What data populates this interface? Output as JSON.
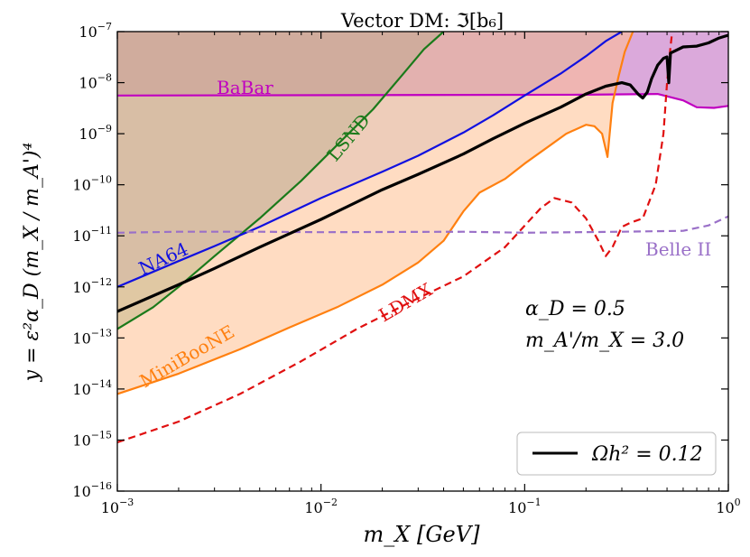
{
  "chart_data": {
    "type": "line",
    "title": "Vector DM: ℑ[b₆]",
    "xlabel": "m_X [GeV]",
    "ylabel": "y = ε²α_D (m_X / m_A')⁴",
    "xscale": "log",
    "yscale": "log",
    "xlim": [
      0.001,
      1
    ],
    "ylim": [
      1e-16,
      1e-07
    ],
    "x_ticks": [
      {
        "value": 0.001,
        "base": "10",
        "exp": "−3"
      },
      {
        "value": 0.01,
        "base": "10",
        "exp": "−2"
      },
      {
        "value": 0.1,
        "base": "10",
        "exp": "−1"
      },
      {
        "value": 1,
        "base": "10",
        "exp": "0"
      }
    ],
    "y_ticks": [
      {
        "value": 1e-07,
        "base": "10",
        "exp": "−7"
      },
      {
        "value": 1e-08,
        "base": "10",
        "exp": "−8"
      },
      {
        "value": 1e-09,
        "base": "10",
        "exp": "−9"
      },
      {
        "value": 1e-10,
        "base": "10",
        "exp": "−10"
      },
      {
        "value": 1e-11,
        "base": "10",
        "exp": "−11"
      },
      {
        "value": 1e-12,
        "base": "10",
        "exp": "−12"
      },
      {
        "value": 1e-13,
        "base": "10",
        "exp": "−13"
      },
      {
        "value": 1e-14,
        "base": "10",
        "exp": "−14"
      },
      {
        "value": 1e-15,
        "base": "10",
        "exp": "−15"
      },
      {
        "value": 1e-16,
        "base": "10",
        "exp": "−16"
      }
    ],
    "grid": false,
    "legend": {
      "position": "bottom-right",
      "entries": [
        {
          "label": "Ωh² = 0.12",
          "color": "#000000",
          "style": "solid"
        }
      ]
    },
    "annotations": [
      "α_D = 0.5",
      "m_A'/m_X = 3.0"
    ],
    "series": [
      {
        "name": "BaBar",
        "color": "#c000c0",
        "fill": "#b040b0",
        "fill_opacity": 0.45,
        "style": "solid",
        "shaded": true,
        "points": [
          [
            0.001,
            5.6e-09
          ],
          [
            0.2,
            5.8e-09
          ],
          [
            0.45,
            6e-09
          ],
          [
            0.6,
            4.5e-09
          ],
          [
            0.7,
            3.3e-09
          ],
          [
            0.85,
            3.2e-09
          ],
          [
            1,
            3.5e-09
          ]
        ]
      },
      {
        "name": "LSND",
        "color": "#1a7a1a",
        "fill": "#3a7f3a",
        "fill_opacity": 0.35,
        "style": "solid",
        "shaded": true,
        "points": [
          [
            0.001,
            1.5e-13
          ],
          [
            0.0015,
            4e-13
          ],
          [
            0.002,
            1e-12
          ],
          [
            0.003,
            4e-12
          ],
          [
            0.005,
            2.2e-11
          ],
          [
            0.008,
            1.2e-10
          ],
          [
            0.012,
            6e-10
          ],
          [
            0.018,
            3e-09
          ],
          [
            0.025,
            1.4e-08
          ],
          [
            0.032,
            4.5e-08
          ],
          [
            0.04,
            1e-07
          ]
        ]
      },
      {
        "name": "NA64",
        "color": "#1010e0",
        "fill": "#8090c8",
        "fill_opacity": 0.3,
        "style": "solid",
        "shaded": true,
        "points": [
          [
            0.001,
            1e-12
          ],
          [
            0.002,
            3.2e-12
          ],
          [
            0.003,
            6.3e-12
          ],
          [
            0.005,
            1.5e-11
          ],
          [
            0.01,
            5.5e-11
          ],
          [
            0.02,
            1.8e-10
          ],
          [
            0.03,
            3.7e-10
          ],
          [
            0.05,
            1.05e-09
          ],
          [
            0.07,
            2.3e-09
          ],
          [
            0.1,
            5.6e-09
          ],
          [
            0.15,
            1.5e-08
          ],
          [
            0.2,
            3.3e-08
          ],
          [
            0.25,
            6.5e-08
          ],
          [
            0.3,
            1e-07
          ]
        ]
      },
      {
        "name": "MiniBooNE",
        "color": "#ff8010",
        "fill": "#ffc090",
        "fill_opacity": 0.55,
        "style": "solid",
        "shaded": true,
        "points": [
          [
            0.001,
            8e-15
          ],
          [
            0.002,
            2e-14
          ],
          [
            0.004,
            6e-14
          ],
          [
            0.007,
            1.6e-13
          ],
          [
            0.012,
            4e-13
          ],
          [
            0.02,
            1.1e-12
          ],
          [
            0.03,
            3e-12
          ],
          [
            0.04,
            8e-12
          ],
          [
            0.05,
            3e-11
          ],
          [
            0.06,
            7e-11
          ],
          [
            0.08,
            1.3e-10
          ],
          [
            0.1,
            2.6e-10
          ],
          [
            0.13,
            5.5e-10
          ],
          [
            0.16,
            1e-09
          ],
          [
            0.2,
            1.5e-09
          ],
          [
            0.22,
            1.4e-09
          ],
          [
            0.24,
            1e-09
          ],
          [
            0.25,
            5e-10
          ],
          [
            0.255,
            3.5e-10
          ],
          [
            0.26,
            8e-10
          ],
          [
            0.27,
            4e-09
          ],
          [
            0.29,
            1.4e-08
          ],
          [
            0.31,
            4e-08
          ],
          [
            0.34,
            1e-07
          ]
        ]
      },
      {
        "name": "Belle II",
        "color": "#9a70c8",
        "style": "dashed",
        "shaded": false,
        "points": [
          [
            0.001,
            1.15e-11
          ],
          [
            0.002,
            1.2e-11
          ],
          [
            0.005,
            1.2e-11
          ],
          [
            0.01,
            1.18e-11
          ],
          [
            0.05,
            1.2e-11
          ],
          [
            0.1,
            1.15e-11
          ],
          [
            0.3,
            1.2e-11
          ],
          [
            0.6,
            1.25e-11
          ],
          [
            0.8,
            1.6e-11
          ],
          [
            1,
            2.4e-11
          ]
        ]
      },
      {
        "name": "LDMX",
        "color": "#e01010",
        "style": "dashed",
        "shaded": false,
        "points": [
          [
            0.001,
            9e-16
          ],
          [
            0.002,
            2.3e-15
          ],
          [
            0.004,
            8e-15
          ],
          [
            0.008,
            3.5e-14
          ],
          [
            0.015,
            1.5e-13
          ],
          [
            0.03,
            6e-13
          ],
          [
            0.05,
            1.6e-12
          ],
          [
            0.08,
            6e-12
          ],
          [
            0.12,
            3.5e-11
          ],
          [
            0.14,
            5.5e-11
          ],
          [
            0.17,
            4.5e-11
          ],
          [
            0.2,
            2.2e-11
          ],
          [
            0.23,
            8e-12
          ],
          [
            0.25,
            4e-12
          ],
          [
            0.27,
            6e-12
          ],
          [
            0.3,
            1.5e-11
          ],
          [
            0.33,
            1.8e-11
          ],
          [
            0.38,
            2.2e-11
          ],
          [
            0.44,
            1e-10
          ],
          [
            0.48,
            1e-09
          ],
          [
            0.5,
            1e-08
          ],
          [
            0.52,
            5e-08
          ],
          [
            0.53,
            1e-07
          ]
        ]
      },
      {
        "name": "Ωh² = 0.12",
        "color": "#000000",
        "style": "solid",
        "shaded": false,
        "points": [
          [
            0.001,
            3.3e-13
          ],
          [
            0.002,
            1.1e-12
          ],
          [
            0.003,
            2.3e-12
          ],
          [
            0.005,
            6e-12
          ],
          [
            0.01,
            2.1e-11
          ],
          [
            0.02,
            8e-11
          ],
          [
            0.03,
            1.6e-10
          ],
          [
            0.05,
            4e-10
          ],
          [
            0.07,
            8e-10
          ],
          [
            0.1,
            1.6e-09
          ],
          [
            0.15,
            3.3e-09
          ],
          [
            0.2,
            6e-09
          ],
          [
            0.25,
            8.5e-09
          ],
          [
            0.3,
            1e-08
          ],
          [
            0.33,
            9e-09
          ],
          [
            0.36,
            6e-09
          ],
          [
            0.38,
            5e-09
          ],
          [
            0.4,
            6.5e-09
          ],
          [
            0.42,
            1.2e-08
          ],
          [
            0.45,
            2.2e-08
          ],
          [
            0.48,
            3e-08
          ],
          [
            0.5,
            3.2e-08
          ],
          [
            0.51,
            1e-08
          ],
          [
            0.52,
            3.8e-08
          ],
          [
            0.6,
            5e-08
          ],
          [
            0.7,
            5.2e-08
          ],
          [
            0.8,
            6e-08
          ],
          [
            0.9,
            7.5e-08
          ],
          [
            1,
            8.5e-08
          ]
        ]
      }
    ]
  }
}
